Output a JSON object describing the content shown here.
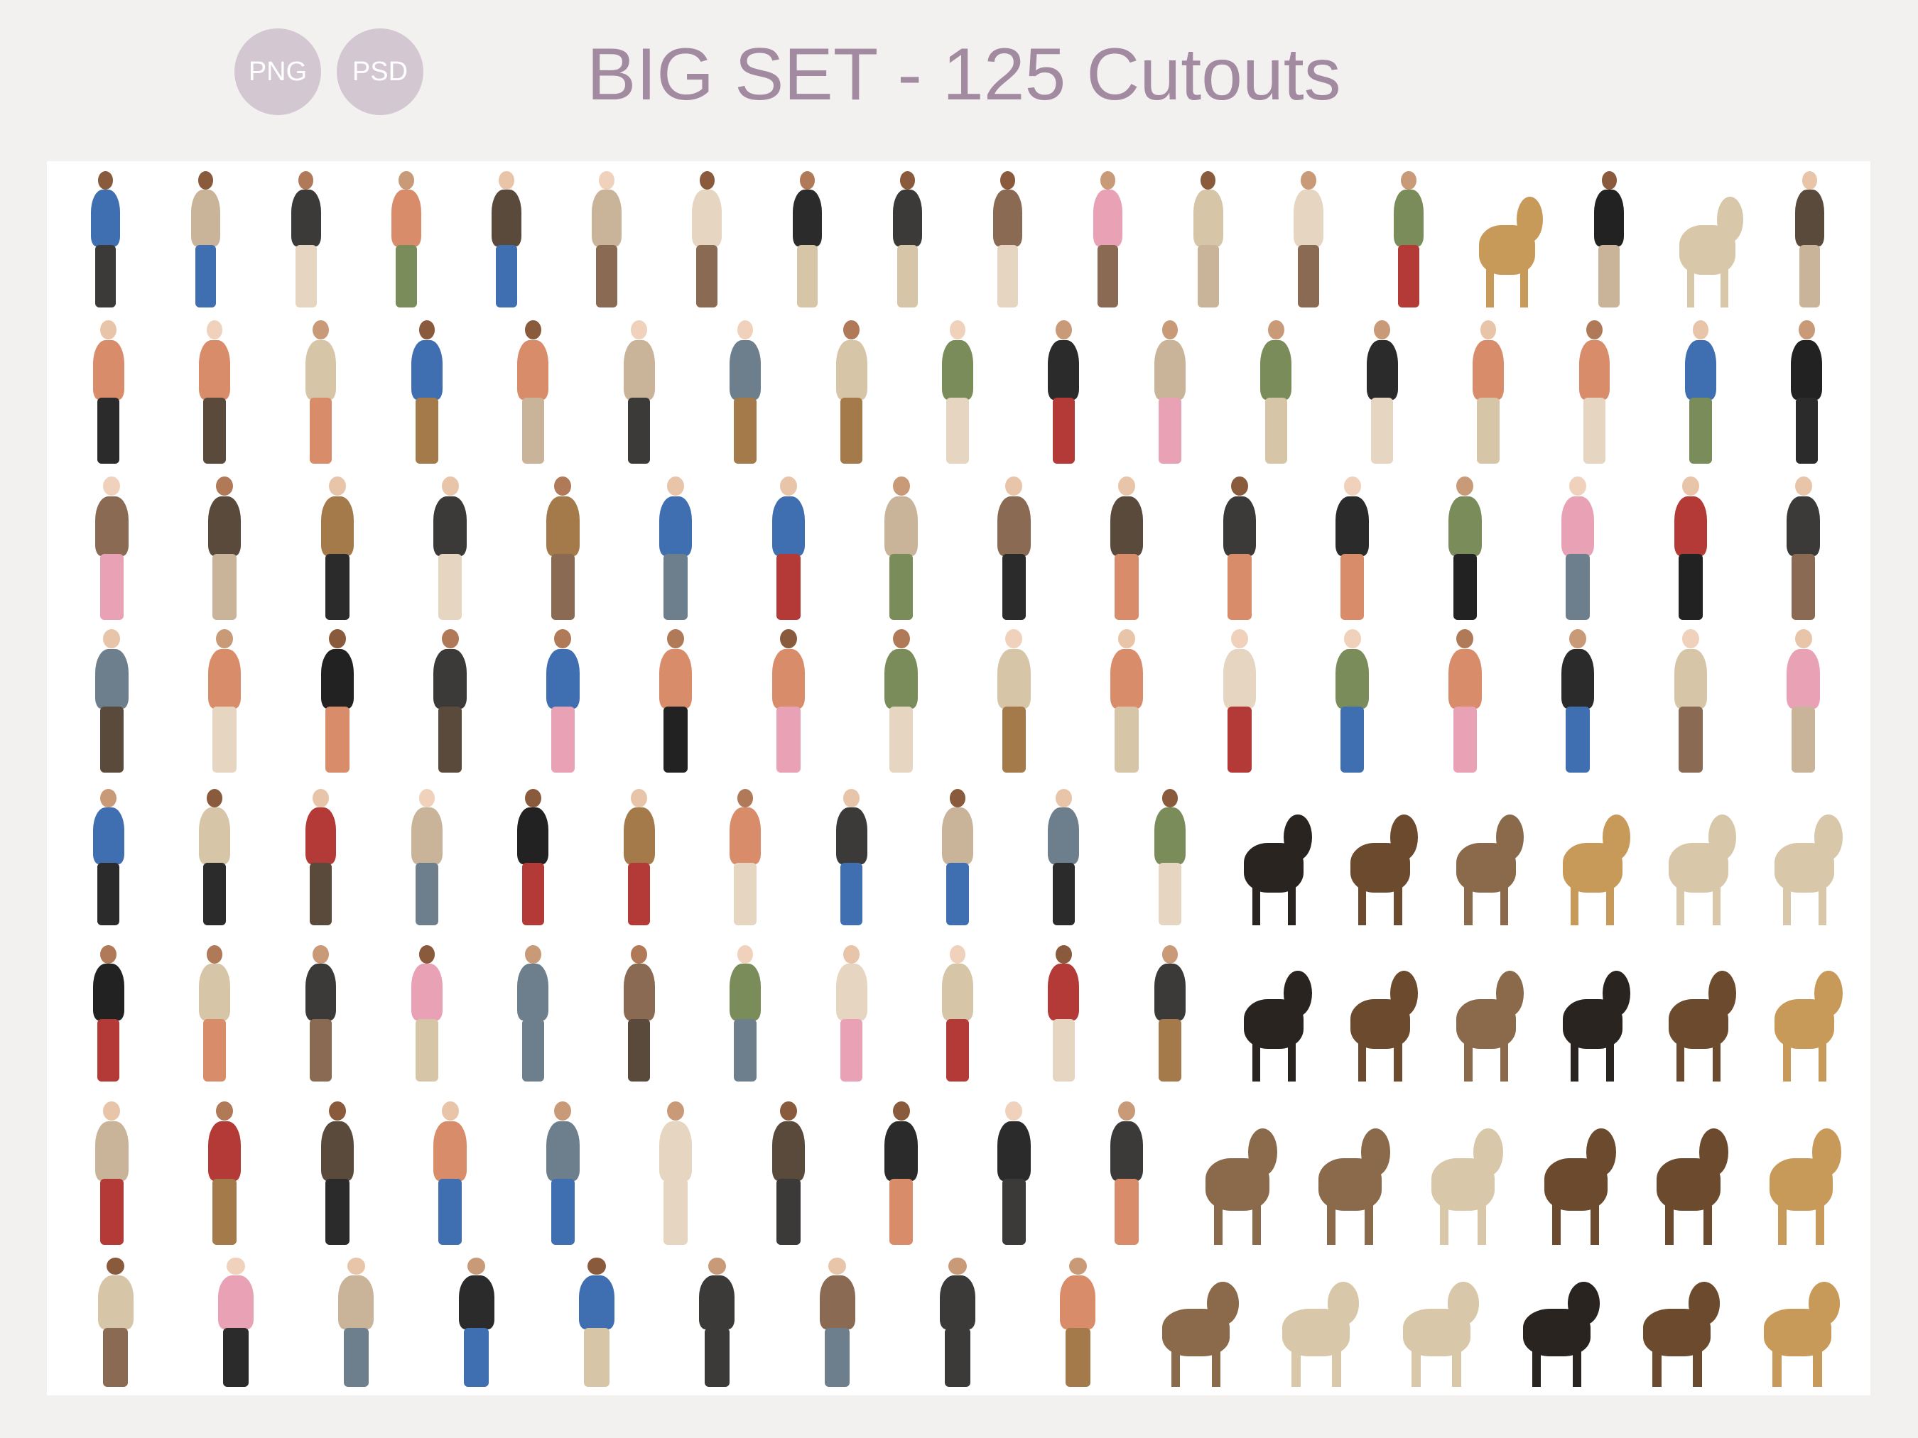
{
  "badges": [
    "PNG",
    "PSD"
  ],
  "title": "BIG SET - 125 Cutouts",
  "colors": {
    "background": "#f3f1f0",
    "badge": "#d3c7d1",
    "title": "#a28aa0",
    "panel": "#ffffff"
  },
  "collage": {
    "description_count": 125,
    "palette": [
      "#2b2b2b",
      "#3c3a38",
      "#8a6a52",
      "#c9b49a",
      "#6d7f8c",
      "#b33a36",
      "#d98c6a",
      "#3f6fb0",
      "#e6d5c0",
      "#5a4a3c",
      "#e8a1b5",
      "#7a8c5a",
      "#a47a4a",
      "#222222",
      "#d7c5a8"
    ]
  }
}
